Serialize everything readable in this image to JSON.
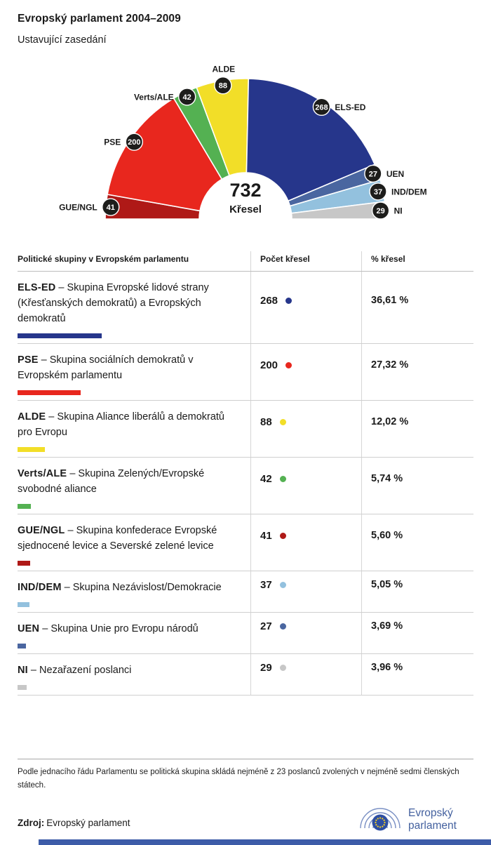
{
  "header": {
    "title": "Evropský parlament 2004–2009",
    "subtitle": "Ustavující zasedání"
  },
  "chart_data": {
    "type": "pie",
    "layout": "hemicycle-half-donut",
    "title": "Evropský parlament 2004–2009",
    "subtitle": "Ustavující zasedání",
    "total": 732,
    "total_label": "Křesel",
    "badge_color": "#1D1D1B",
    "series": [
      {
        "name": "GUE/NGL",
        "value": 41,
        "pct": "5,60 %",
        "color": "#AF1917"
      },
      {
        "name": "PSE",
        "value": 200,
        "pct": "27,32 %",
        "color": "#E8271E"
      },
      {
        "name": "Verts/ALE",
        "value": 42,
        "pct": "5,74 %",
        "color": "#54B152"
      },
      {
        "name": "ALDE",
        "value": 88,
        "pct": "12,02 %",
        "color": "#F2DE28"
      },
      {
        "name": "ELS-ED",
        "value": 268,
        "pct": "36,61 %",
        "color": "#26368B"
      },
      {
        "name": "UEN",
        "value": 27,
        "pct": "3,69 %",
        "color": "#4A66A0"
      },
      {
        "name": "IND/DEM",
        "value": 37,
        "pct": "5,05 %",
        "color": "#93C1DE"
      },
      {
        "name": "NI",
        "value": 29,
        "pct": "3,96 %",
        "color": "#C7C7C7"
      }
    ]
  },
  "table": {
    "headers": [
      "Politické skupiny v Evropském parlamentu",
      "Počet křesel",
      "% křesel"
    ],
    "rows": [
      {
        "abbr": "ELS-ED",
        "desc": "– Skupina Evropské lidové strany (Křesťanských demokratů) a Evropských demokratů",
        "seats": 268,
        "pct": "36,61 %"
      },
      {
        "abbr": "PSE",
        "desc": "– Skupina sociálních demokratů v Evropském parlamentu",
        "seats": 200,
        "pct": "27,32 %"
      },
      {
        "abbr": "ALDE",
        "desc": "– Skupina Aliance liberálů a demokratů pro Evropu",
        "seats": 88,
        "pct": "12,02 %"
      },
      {
        "abbr": "Verts/ALE",
        "desc": "– Skupina Zelených/Evropské svobodné aliance",
        "seats": 42,
        "pct": "5,74 %"
      },
      {
        "abbr": "GUE/NGL",
        "desc": "– Skupina konfederace Evropské sjednocené levice a Severské zelené levice",
        "seats": 41,
        "pct": "5,60 %"
      },
      {
        "abbr": "IND/DEM",
        "desc": "– Skupina Nezávislost/Demokracie",
        "seats": 37,
        "pct": "5,05 %"
      },
      {
        "abbr": "UEN",
        "desc": "– Skupina Unie pro Evropu národů",
        "seats": 27,
        "pct": "3,69 %"
      },
      {
        "abbr": "NI",
        "desc": "– Nezařazení poslanci",
        "seats": 29,
        "pct": "3,96 %"
      }
    ]
  },
  "footer": {
    "note": "Podle jednacího řádu Parlamentu se politická skupina skládá nejméně z 23 poslanců zvolených v nejméně sedmi členských státech.",
    "source_label": "Zdroj:",
    "source": "Evropský parlament",
    "logo_line1": "Evropský",
    "logo_line2": "parlament"
  }
}
